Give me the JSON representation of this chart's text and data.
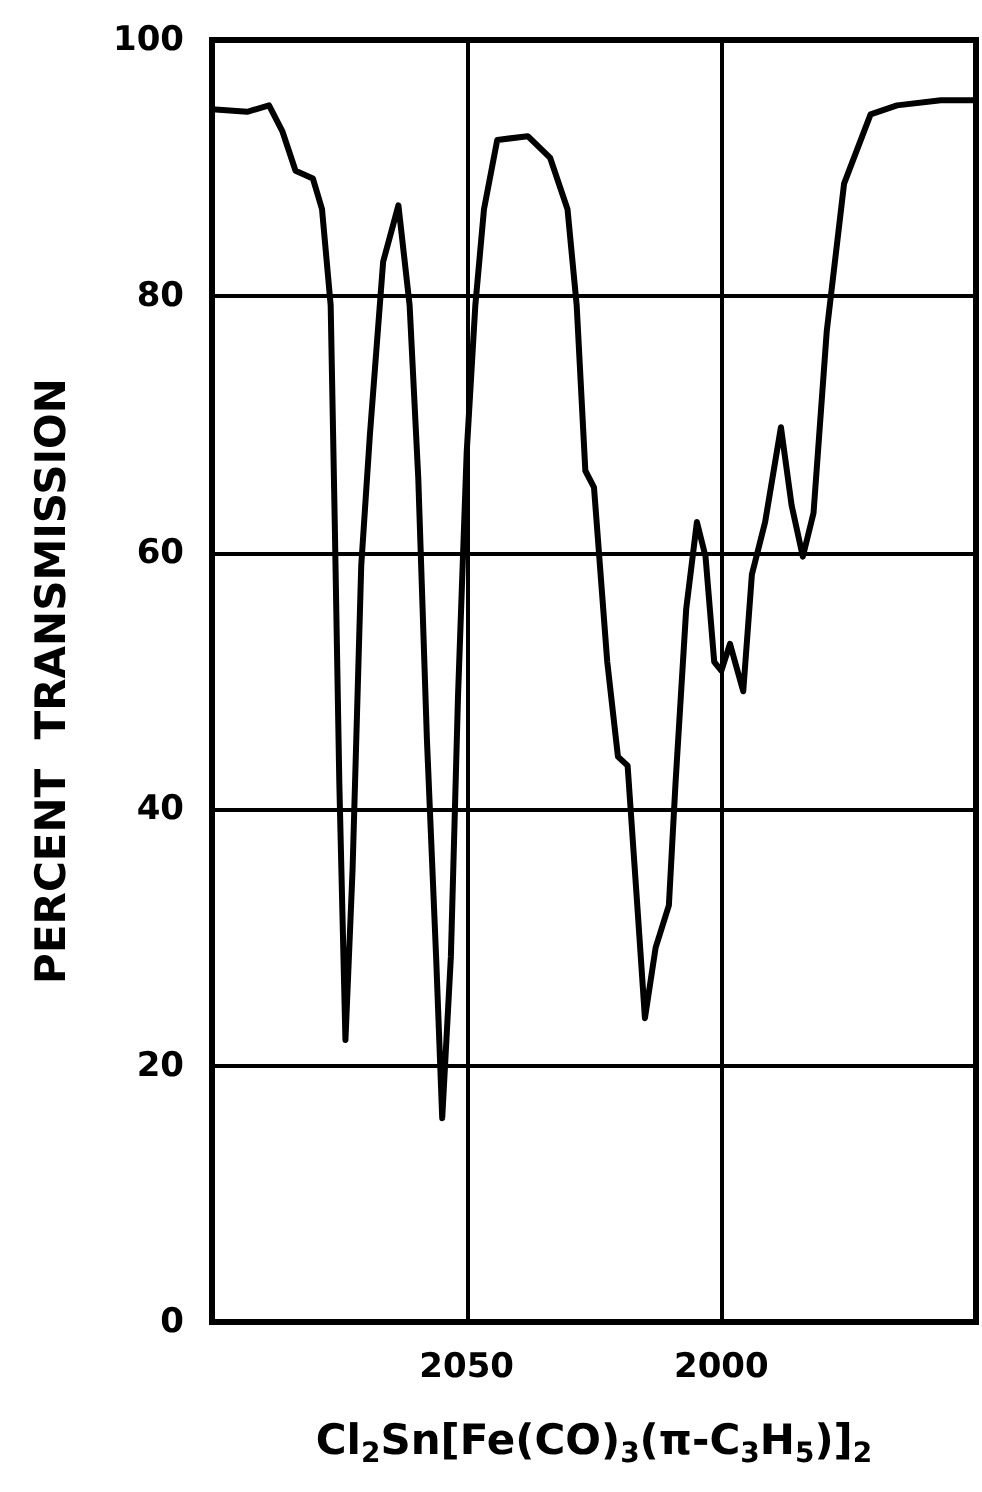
{
  "chart_data": {
    "type": "line",
    "xlabel": "Cl$_{2}$Sn[Fe(CO)$_{3}$(π-C$_{3}$H$_{5}$)]$_{2}$",
    "ylabel": "PERCENT  TRANSMISSION",
    "xlim": [
      2100,
      1950
    ],
    "xticks": [
      2050,
      2000
    ],
    "ylim": [
      0,
      100
    ],
    "yticks": [
      0,
      20,
      40,
      60,
      80,
      100
    ],
    "grid": true,
    "marker": "none",
    "line_style": "solid",
    "series": [
      {
        "color": "#000000",
        "x": [
          2100,
          2093.1,
          2088.8,
          2086.2,
          2083.6,
          2080.2,
          2078.4,
          2076.7,
          2075.9,
          2075,
          2073.8,
          2072.4,
          2070.7,
          2069,
          2066.4,
          2063.4,
          2061.2,
          2059.5,
          2057.8,
          2056,
          2054.8,
          2053.1,
          2051.7,
          2050,
          2048.3,
          2046.6,
          2044,
          2038,
          2033.6,
          2030.2,
          2028.4,
          2026.7,
          2025,
          2022.4,
          2020.3,
          2018.4,
          2016.4,
          2015,
          2012.9,
          2010.3,
          2009,
          2006.9,
          2004.8,
          2003.1,
          2001.4,
          2000,
          1998.3,
          1995.7,
          1994,
          1991.4,
          1988.3,
          1986.2,
          1984,
          1981.9,
          1979.3,
          1975.9,
          1970.7,
          1965.5,
          1956.9,
          1950
        ],
        "values": [
          94.6,
          94.4,
          94.9,
          92.9,
          89.8,
          89.2,
          86.8,
          79.3,
          62.4,
          42,
          22,
          35.3,
          59,
          69.2,
          82.7,
          87.1,
          79.3,
          65.8,
          45.4,
          28.5,
          15.9,
          28.5,
          48.8,
          67.8,
          79.3,
          86.8,
          92.2,
          92.5,
          90.8,
          86.8,
          79.3,
          66.4,
          65.1,
          51.5,
          44.1,
          43.4,
          31.9,
          23.7,
          29.2,
          32.5,
          42,
          55.6,
          62.4,
          59.7,
          51.5,
          50.8,
          52.9,
          49.2,
          58.3,
          62.4,
          69.8,
          63.7,
          59.7,
          63.1,
          77.3,
          88.8,
          94.2,
          94.9,
          95.3,
          95.3
        ]
      }
    ]
  }
}
